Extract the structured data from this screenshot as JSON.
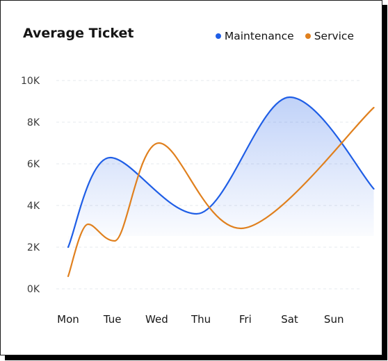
{
  "colors": {
    "maintenance": "#1f5ee6",
    "service": "#e0801e",
    "grid": "#e6e8ec"
  },
  "chart_data": {
    "type": "line",
    "title": "Average Ticket",
    "categories": [
      "Mon",
      "Tue",
      "Wed",
      "Thu",
      "Fri",
      "Sat",
      "Sun"
    ],
    "y_ticks": [
      "0K",
      "2K",
      "4K",
      "6K",
      "8K",
      "10K"
    ],
    "ylim": [
      0,
      10000
    ],
    "grid": true,
    "legend": "top-right",
    "series": [
      {
        "name": "Maintenance",
        "x": [
          0,
          0.95,
          2.9,
          5.0,
          6.9
        ],
        "values": [
          2000,
          6300,
          3600,
          9200,
          4800
        ],
        "fill": true
      },
      {
        "name": "Service",
        "x": [
          0,
          0.45,
          1.05,
          2.05,
          3.9,
          6.9
        ],
        "values": [
          600,
          3100,
          2300,
          7000,
          2900,
          8700
        ],
        "fill": false
      }
    ]
  }
}
